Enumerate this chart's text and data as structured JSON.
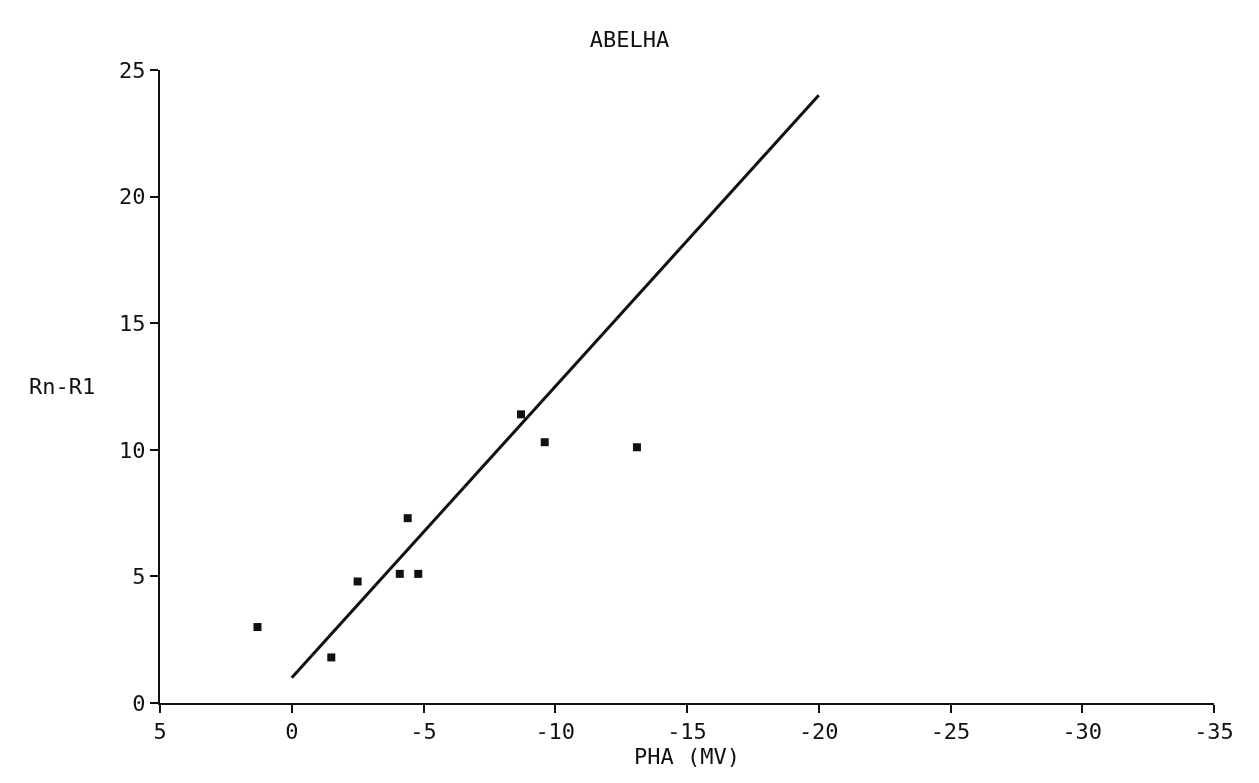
{
  "chart_data": {
    "type": "scatter",
    "title": "ABELHA",
    "xlabel": "PHA (MV)",
    "ylabel": "Rn-R1",
    "series": [
      {
        "marker": "square",
        "color": "#111111",
        "x": [
          1.3,
          -1.5,
          -2.5,
          -4.1,
          -4.4,
          -4.8,
          -8.7,
          -9.6,
          -13.1
        ],
        "values": [
          3,
          1.8,
          4.8,
          5.1,
          7.3,
          5.1,
          11.4,
          10.3,
          10.1
        ]
      },
      {
        "type": "line",
        "marker": "none",
        "color": "#111111",
        "x": [
          0,
          -20
        ],
        "values": [
          1,
          24
        ]
      }
    ],
    "xlim": [
      5,
      -35
    ],
    "xticks": [
      5,
      0,
      -5,
      -10,
      -15,
      -20,
      -25,
      -30,
      -35
    ],
    "ylim": [
      0,
      25
    ],
    "yticks": [
      0,
      5,
      10,
      15,
      20,
      25
    ],
    "grid": false,
    "line_style": "solid"
  }
}
